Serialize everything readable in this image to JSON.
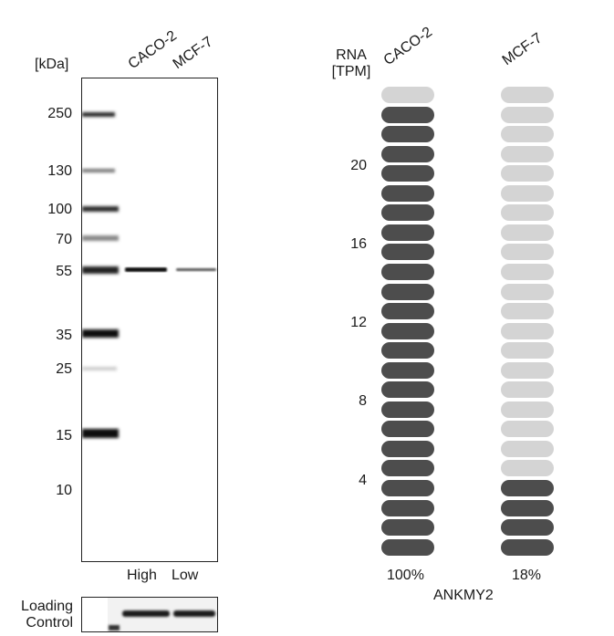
{
  "western_blot": {
    "unit_label": "[kDa]",
    "lanes": [
      "CACO-2",
      "MCF-7"
    ],
    "levels": [
      "High",
      "Low"
    ],
    "markers": [
      "250",
      "130",
      "100",
      "70",
      "55",
      "35",
      "25",
      "15",
      "10"
    ],
    "loading_control_label": [
      "Loading",
      "Control"
    ]
  },
  "chart_data": {
    "type": "bar",
    "ylabel": [
      "RNA",
      "[TPM]"
    ],
    "gene": "ANKMY2",
    "categories": [
      "CACO-2",
      "MCF-7"
    ],
    "values_percent": [
      100,
      18
    ],
    "value_labels": [
      "100%",
      "18%"
    ],
    "ticks": [
      "20",
      "16",
      "12",
      "8",
      "4"
    ],
    "segments_total": 24,
    "filled_segments": [
      23,
      4
    ],
    "colors": {
      "filled": "#4d4d4d",
      "empty": "#d4d4d4"
    }
  }
}
